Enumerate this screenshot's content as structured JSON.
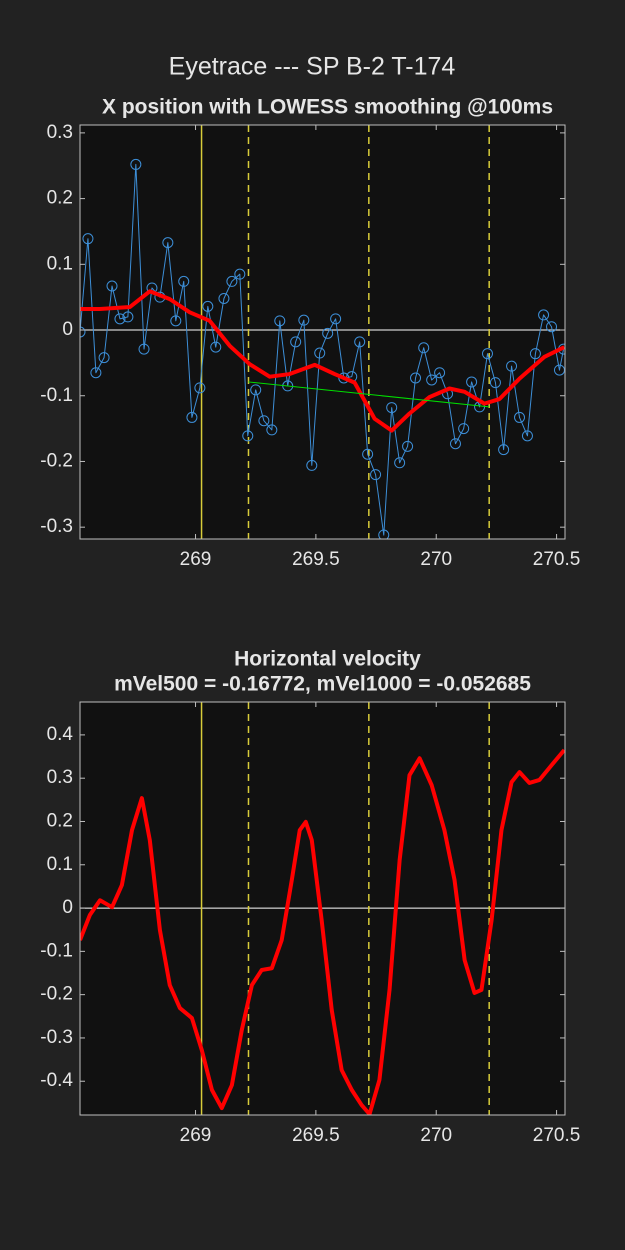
{
  "title": "Eyetrace --- SP B-2 T-174",
  "chart_data": [
    {
      "type": "line",
      "title": "X position with LOWESS smoothing @100ms",
      "xlim": [
        268.52,
        270.535
      ],
      "ylim": [
        -0.318,
        0.312
      ],
      "xticks": [
        269,
        269.5,
        270,
        270.5
      ],
      "yticks": [
        0.3,
        0.2,
        0.1,
        0,
        -0.1,
        -0.2,
        -0.3
      ],
      "zero_line": true,
      "vlines": [
        {
          "value": 269.025,
          "color": "#d8cc3a",
          "dashed": false
        },
        {
          "value": 269.22,
          "color": "#d8cc3a",
          "dashed": true
        },
        {
          "value": 269.72,
          "color": "#d8cc3a",
          "dashed": true
        },
        {
          "value": 270.22,
          "color": "#d8cc3a",
          "dashed": true
        }
      ],
      "series": [
        {
          "color": "#3d8fd8",
          "width": 1,
          "marker": "circle",
          "x": [
            268.52,
            268.553,
            268.586,
            268.62,
            268.653,
            268.686,
            268.719,
            268.752,
            268.786,
            268.819,
            268.852,
            268.885,
            268.918,
            268.951,
            268.985,
            269.018,
            269.051,
            269.084,
            269.118,
            269.151,
            269.184,
            269.217,
            269.25,
            269.284,
            269.317,
            269.35,
            269.383,
            269.416,
            269.45,
            269.483,
            269.516,
            269.549,
            269.582,
            269.616,
            269.649,
            269.682,
            269.715,
            269.748,
            269.782,
            269.815,
            269.848,
            269.881,
            269.914,
            269.948,
            269.981,
            270.014,
            270.047,
            270.08,
            270.114,
            270.147,
            270.18,
            270.213,
            270.246,
            270.28,
            270.313,
            270.346,
            270.379,
            270.412,
            270.446,
            270.479,
            270.512,
            270.529
          ],
          "values": [
            -0.003,
            0.139,
            -0.065,
            -0.042,
            0.067,
            0.017,
            0.02,
            0.252,
            -0.029,
            0.064,
            0.05,
            0.133,
            0.014,
            0.074,
            -0.133,
            -0.088,
            0.036,
            -0.026,
            0.048,
            0.074,
            0.085,
            -0.161,
            -0.091,
            -0.138,
            -0.152,
            0.014,
            -0.085,
            -0.018,
            0.015,
            -0.206,
            -0.035,
            -0.005,
            0.017,
            -0.073,
            -0.071,
            -0.018,
            -0.189,
            -0.22,
            -0.312,
            -0.118,
            -0.202,
            -0.177,
            -0.073,
            -0.027,
            -0.076,
            -0.065,
            -0.097,
            -0.173,
            -0.15,
            -0.079,
            -0.117,
            -0.036,
            -0.08,
            -0.182,
            -0.055,
            -0.133,
            -0.161,
            -0.036,
            0.023,
            0.005,
            -0.061,
            -0.029
          ]
        },
        {
          "color": "#ff0000",
          "width": 4,
          "x": [
            268.52,
            268.603,
            268.727,
            268.81,
            268.893,
            268.976,
            269.059,
            269.142,
            269.225,
            269.308,
            269.391,
            269.495,
            269.578,
            269.661,
            269.744,
            269.815,
            269.889,
            269.972,
            270.055,
            270.118,
            270.2,
            270.263,
            270.346,
            270.449,
            270.532
          ],
          "values": [
            0.032,
            0.032,
            0.035,
            0.059,
            0.047,
            0.027,
            0.014,
            -0.024,
            -0.052,
            -0.071,
            -0.067,
            -0.053,
            -0.067,
            -0.08,
            -0.135,
            -0.153,
            -0.127,
            -0.102,
            -0.089,
            -0.094,
            -0.112,
            -0.105,
            -0.074,
            -0.041,
            -0.026
          ]
        },
        {
          "color": "#00e000",
          "width": 1,
          "x": [
            269.22,
            270.22
          ],
          "values": [
            -0.079,
            -0.117
          ]
        }
      ]
    },
    {
      "type": "line",
      "title": "Horizontal velocity",
      "subtitle": "mVel500 = -0.16772, mVel1000 = -0.052685",
      "xlim": [
        268.52,
        270.535
      ],
      "ylim": [
        -0.478,
        0.476
      ],
      "xticks": [
        269,
        269.5,
        270,
        270.5
      ],
      "yticks": [
        0.4,
        0.3,
        0.2,
        0.1,
        0,
        -0.1,
        -0.2,
        -0.3,
        -0.4
      ],
      "zero_line": true,
      "vlines": [
        {
          "value": 269.025,
          "color": "#d8cc3a",
          "dashed": false
        },
        {
          "value": 269.22,
          "color": "#d8cc3a",
          "dashed": true
        },
        {
          "value": 269.72,
          "color": "#d8cc3a",
          "dashed": true
        },
        {
          "value": 270.22,
          "color": "#d8cc3a",
          "dashed": true
        }
      ],
      "series": [
        {
          "color": "#ff0000",
          "width": 4,
          "x": [
            268.52,
            268.561,
            268.603,
            268.653,
            268.694,
            268.736,
            268.777,
            268.81,
            268.852,
            268.893,
            268.935,
            268.985,
            269.026,
            269.068,
            269.109,
            269.151,
            269.192,
            269.234,
            269.275,
            269.317,
            269.358,
            269.4,
            269.433,
            269.458,
            269.483,
            269.524,
            269.566,
            269.607,
            269.649,
            269.69,
            269.723,
            269.764,
            269.806,
            269.848,
            269.889,
            269.931,
            269.981,
            270.034,
            270.076,
            270.118,
            270.159,
            270.188,
            270.23,
            270.271,
            270.313,
            270.346,
            270.387,
            270.429,
            270.479,
            270.532
          ],
          "values": [
            -0.074,
            -0.016,
            0.018,
            0.002,
            0.053,
            0.18,
            0.254,
            0.157,
            -0.051,
            -0.178,
            -0.231,
            -0.254,
            -0.328,
            -0.42,
            -0.462,
            -0.409,
            -0.282,
            -0.178,
            -0.143,
            -0.139,
            -0.074,
            0.065,
            0.18,
            0.199,
            0.157,
            -0.028,
            -0.236,
            -0.374,
            -0.42,
            -0.455,
            -0.476,
            -0.397,
            -0.189,
            0.111,
            0.307,
            0.346,
            0.284,
            0.18,
            0.065,
            -0.12,
            -0.196,
            -0.189,
            -0.028,
            0.18,
            0.291,
            0.314,
            0.289,
            0.296,
            0.33,
            0.365
          ]
        }
      ]
    }
  ]
}
